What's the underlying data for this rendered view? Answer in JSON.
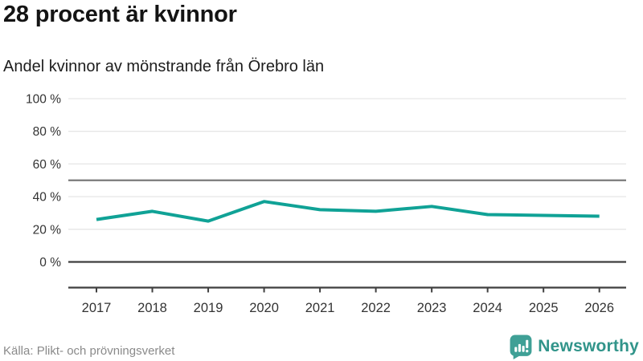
{
  "header": {
    "title": "28 procent är kvinnor",
    "subtitle": "Andel kvinnor av mönstrande från Örebro län"
  },
  "chart_data": {
    "type": "line",
    "title": "28 procent är kvinnor",
    "subtitle": "Andel kvinnor av mönstrande från Örebro län",
    "series": [
      {
        "name": "Andel kvinnor av mönstrande från Örebro län",
        "values": [
          26,
          31,
          25,
          37,
          32,
          31,
          34,
          29,
          28.5,
          28
        ]
      }
    ],
    "categories": [
      "2017",
      "2018",
      "2019",
      "2020",
      "2021",
      "2022",
      "2023",
      "2024",
      "2025",
      "2026"
    ],
    "xlabel": "",
    "ylabel": "",
    "ylim": [
      0,
      100
    ],
    "yticks": [
      100,
      80,
      60,
      40,
      20,
      0
    ],
    "ytick_labels": [
      "100 %",
      "80 %",
      "60 %",
      "40 %",
      "20 %",
      "0 %"
    ],
    "reference_line": 50,
    "grid": true,
    "legend_position": "none",
    "line_color": "#10a296",
    "grid_color": "#e6e6e6",
    "reference_line_color": "#7a7a7a",
    "zero_line_color": "#3f3f3f",
    "axis_color": "#3f3f3f",
    "tick_label_color": "#333333"
  },
  "footer": {
    "source": "Källa: Plikt- och prövningsverket",
    "brand": "Newsworthy",
    "brand_icon_color": "#3fa096",
    "brand_text_color": "#31948a"
  }
}
